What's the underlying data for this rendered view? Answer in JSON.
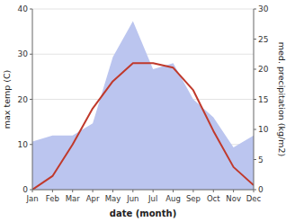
{
  "chart_data": {
    "type": "line",
    "categories": [
      "Jan",
      "Feb",
      "Mar",
      "Apr",
      "May",
      "Jun",
      "Jul",
      "Aug",
      "Sep",
      "Oct",
      "Nov",
      "Dec"
    ],
    "series": [
      {
        "type": "area",
        "axis": "y2",
        "color": "#bbc5ef",
        "values": [
          8,
          9,
          9,
          11,
          22,
          28,
          20,
          21,
          15,
          12,
          7,
          9
        ]
      },
      {
        "type": "line",
        "color": "#c0392b",
        "values": [
          0,
          3,
          10,
          18,
          24,
          28,
          28,
          27,
          22,
          13,
          5,
          1
        ]
      }
    ],
    "x_label": "date (month)",
    "y_label": "max temp (C)",
    "y2_label": "med. precipitation (kg/m2)",
    "ylim": [
      0,
      40
    ],
    "yticks": [
      0,
      10,
      20,
      30,
      40
    ],
    "y2lim": [
      0,
      30
    ],
    "y2ticks": [
      0,
      5,
      10,
      15,
      20,
      25,
      30
    ],
    "grid": true
  }
}
